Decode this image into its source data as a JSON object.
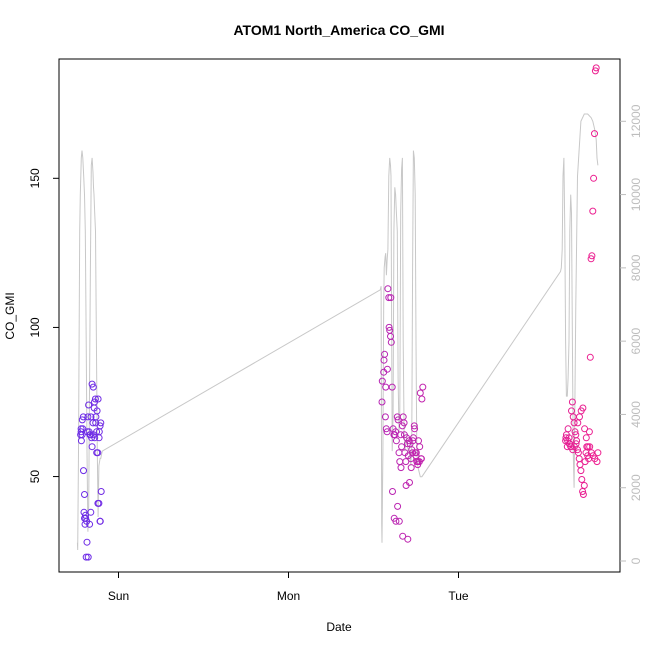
{
  "chart_data": {
    "type": "scatter",
    "title": "ATOM1 North_America CO_GMI",
    "xlabel": "Date",
    "ylabel": "CO_GMI",
    "ylabel_right": "",
    "x_ticks": [
      "Sun",
      "Mon",
      "Tue"
    ],
    "x_tick_pos": [
      1.0,
      2.0,
      3.0
    ],
    "xlim": [
      0.65,
      3.95
    ],
    "y_ticks": [
      50,
      100,
      150
    ],
    "ylim": [
      18,
      190
    ],
    "y2_ticks": [
      0,
      2000,
      4000,
      6000,
      8000,
      10000,
      12000
    ],
    "y2lim": [
      -300,
      13700
    ],
    "grid": false,
    "legend": "none",
    "colors": {
      "altitude_line": "#c8c8c8",
      "early": "#6a2be8",
      "late": "#ee1f8e",
      "axis": "#000000",
      "right_axis": "#bdbdbd"
    },
    "series": [
      {
        "kind": "points",
        "x": [
          0.78,
          0.787,
          0.794,
          0.8,
          0.807,
          0.815,
          0.822,
          0.83,
          0.837,
          0.845,
          0.852,
          0.86,
          0.867,
          0.874,
          0.88,
          0.887,
          0.893,
          0.898,
          0.777,
          0.782,
          0.79,
          0.797,
          0.803,
          0.81,
          0.817,
          0.824,
          0.831,
          0.838,
          0.845,
          0.852,
          0.859,
          0.866,
          0.872,
          0.879,
          0.886,
          0.892,
          0.78,
          0.786,
          0.793,
          0.8,
          0.806,
          0.813,
          0.82,
          0.827,
          0.835,
          0.842,
          0.85,
          0.857,
          0.864,
          0.871,
          0.878,
          0.885,
          0.891,
          0.896
        ],
        "y": [
          65,
          69,
          52,
          44,
          36,
          28,
          23,
          34,
          38,
          60,
          64,
          63,
          70,
          72,
          76,
          65,
          35,
          45,
          64,
          62,
          66,
          38,
          34,
          23,
          65,
          74,
          64,
          70,
          81,
          80,
          75,
          68,
          58,
          41,
          63,
          67,
          66,
          64,
          70,
          36,
          37,
          35,
          70,
          65,
          64,
          63,
          68,
          73,
          76,
          65,
          58,
          41,
          35,
          68
        ]
      },
      {
        "kind": "points",
        "x": [
          2.55,
          2.56,
          2.565,
          2.57,
          2.575,
          2.58,
          2.585,
          2.59,
          2.595,
          2.6,
          2.605,
          2.61,
          2.615,
          2.62,
          2.625,
          2.63,
          2.635,
          2.64,
          2.645,
          2.65,
          2.655,
          2.66,
          2.665,
          2.67,
          2.675,
          2.68,
          2.685,
          2.69,
          2.695,
          2.7,
          2.705,
          2.71,
          2.715,
          2.72,
          2.725,
          2.73,
          2.735,
          2.74,
          2.745,
          2.75,
          2.755,
          2.76,
          2.765,
          2.77,
          2.775,
          2.78,
          2.785,
          2.79,
          2.552,
          2.562,
          2.572,
          2.582,
          2.592,
          2.602,
          2.612,
          2.622,
          2.632,
          2.642,
          2.652,
          2.662,
          2.672,
          2.682,
          2.692,
          2.702,
          2.712,
          2.722,
          2.732,
          2.742,
          2.752,
          2.762,
          2.772,
          2.782
        ],
        "y": [
          75,
          85,
          91,
          70,
          66,
          65,
          113,
          110,
          99,
          97,
          95,
          80,
          66,
          64,
          64,
          65,
          62,
          70,
          69,
          58,
          55,
          64,
          60,
          67,
          70,
          68,
          58,
          55,
          63,
          61,
          57,
          62,
          61,
          56,
          59,
          58,
          63,
          67,
          58,
          57,
          55,
          54,
          62,
          55,
          78,
          56,
          76,
          80,
          82,
          89,
          80,
          86,
          100,
          110,
          45,
          36,
          35,
          40,
          35,
          53,
          30,
          64,
          47,
          29,
          48,
          53,
          62,
          66,
          58,
          55,
          60,
          56
        ]
      },
      {
        "kind": "points",
        "x": [
          3.63,
          3.635,
          3.64,
          3.645,
          3.65,
          3.655,
          3.66,
          3.665,
          3.67,
          3.675,
          3.68,
          3.685,
          3.69,
          3.695,
          3.7,
          3.705,
          3.71,
          3.715,
          3.72,
          3.725,
          3.73,
          3.735,
          3.74,
          3.745,
          3.75,
          3.755,
          3.76,
          3.765,
          3.77,
          3.775,
          3.78,
          3.785,
          3.79,
          3.795,
          3.8,
          3.805,
          3.81,
          3.815,
          3.82,
          3.632,
          3.642,
          3.652,
          3.662,
          3.672,
          3.682,
          3.692,
          3.702,
          3.712,
          3.722,
          3.732,
          3.742,
          3.752,
          3.762,
          3.772,
          3.782,
          3.792,
          3.802
        ],
        "y": [
          62,
          64,
          60,
          66,
          63,
          61,
          60,
          72,
          75,
          70,
          68,
          65,
          64,
          62,
          59,
          58,
          56,
          54,
          52,
          49,
          45,
          44,
          47,
          55,
          58,
          60,
          57,
          56,
          65,
          90,
          123,
          124,
          139,
          150,
          165,
          186,
          187,
          55,
          58,
          63,
          62,
          61,
          60,
          59,
          60,
          61,
          68,
          70,
          72,
          73,
          66,
          63,
          60,
          60,
          58,
          57,
          56
        ]
      },
      {
        "kind": "line",
        "x": [
          0.758,
          0.76,
          0.765,
          0.768,
          0.772,
          0.775,
          0.778,
          0.781,
          0.785,
          0.79,
          0.795,
          0.8,
          0.805,
          0.81,
          0.815,
          0.82,
          0.825,
          0.83,
          0.835,
          0.84,
          0.845,
          0.85,
          0.853,
          0.856,
          0.86,
          0.865,
          0.87,
          0.875,
          0.88,
          0.885,
          0.888,
          0.892,
          0.896,
          0.9,
          0.905,
          2.54,
          2.545,
          2.548,
          2.55,
          2.555,
          2.56,
          2.563,
          2.568,
          2.572,
          2.576,
          2.58,
          2.585,
          2.59,
          2.595,
          2.6,
          2.603,
          2.607,
          2.61,
          2.615,
          2.62,
          2.625,
          2.63,
          2.635,
          2.64,
          2.645,
          2.65,
          2.655,
          2.66,
          2.665,
          2.67,
          2.675,
          2.68,
          2.685,
          2.69,
          2.695,
          2.7,
          2.705,
          2.71,
          2.715,
          2.72,
          2.725,
          2.73,
          2.735,
          2.74,
          2.745,
          2.75,
          2.755,
          2.76,
          2.765,
          2.77,
          2.775,
          2.78,
          2.785,
          3.6,
          3.605,
          3.61,
          3.615,
          3.62,
          3.625,
          3.63,
          3.635,
          3.64,
          3.645,
          3.65,
          3.655,
          3.66,
          3.665,
          3.67,
          3.675,
          3.68,
          3.69,
          3.7,
          3.72,
          3.74,
          3.76,
          3.78,
          3.79,
          3.8,
          3.81,
          3.815,
          3.82
        ],
        "y": [
          500,
          300,
          3000,
          6000,
          9000,
          10000,
          10500,
          11000,
          11200,
          11000,
          10500,
          10000,
          9000,
          6000,
          3000,
          800,
          1500,
          5000,
          8000,
          10800,
          11000,
          10600,
          10200,
          10000,
          9500,
          9000,
          6000,
          3000,
          1200,
          2600,
          2700,
          2800,
          2800,
          2900,
          3000,
          7400,
          7500,
          1000,
          500,
          3000,
          7000,
          8000,
          8300,
          8400,
          7800,
          8200,
          8500,
          10500,
          11000,
          10800,
          10500,
          6000,
          3000,
          4000,
          9000,
          10200,
          10000,
          9500,
          9000,
          5000,
          3500,
          4000,
          9500,
          10700,
          11000,
          6000,
          3500,
          3000,
          3200,
          3400,
          3200,
          3000,
          3000,
          2800,
          2600,
          3500,
          8000,
          11200,
          11000,
          10000,
          6000,
          3000,
          2600,
          2500,
          2400,
          2300,
          2300,
          2300,
          7900,
          8000,
          8500,
          10500,
          11000,
          9000,
          6000,
          4500,
          4500,
          5000,
          6000,
          9000,
          10000,
          9500,
          6000,
          3000,
          2000,
          7000,
          10500,
          12000,
          12200,
          12200,
          12100,
          12000,
          11800,
          11500,
          11000,
          10800
        ]
      }
    ]
  }
}
